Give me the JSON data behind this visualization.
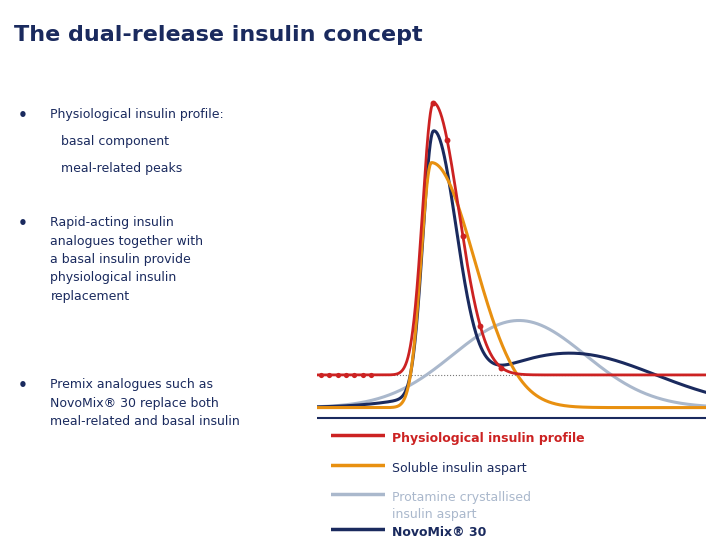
{
  "title": "The dual-release insulin concept",
  "title_color": "#1a2a5e",
  "background_color": "#ffffff",
  "bullet_color": "#1a2a5e",
  "curve_colors": {
    "physio": "#cc2222",
    "soluble": "#e89010",
    "protamine": "#aab8cc",
    "novomix": "#1a2a5e"
  },
  "dot_color": "#cc2222",
  "basal_line_color": "#555555",
  "legend_entries": [
    {
      "color": "#cc2222",
      "label": "Physiological insulin profile",
      "text_color": "#cc2222",
      "bold": true
    },
    {
      "color": "#e89010",
      "label": "Soluble insulin aspart",
      "text_color": "#1a2a5e",
      "bold": false
    },
    {
      "color": "#aab8cc",
      "label": "Protamine crystallised\ninsulin aspart",
      "text_color": "#aab8cc",
      "bold": false
    },
    {
      "color": "#1a2a5e",
      "label": "NovoMix® 30",
      "text_color": "#1a2a5e",
      "bold": true
    }
  ]
}
